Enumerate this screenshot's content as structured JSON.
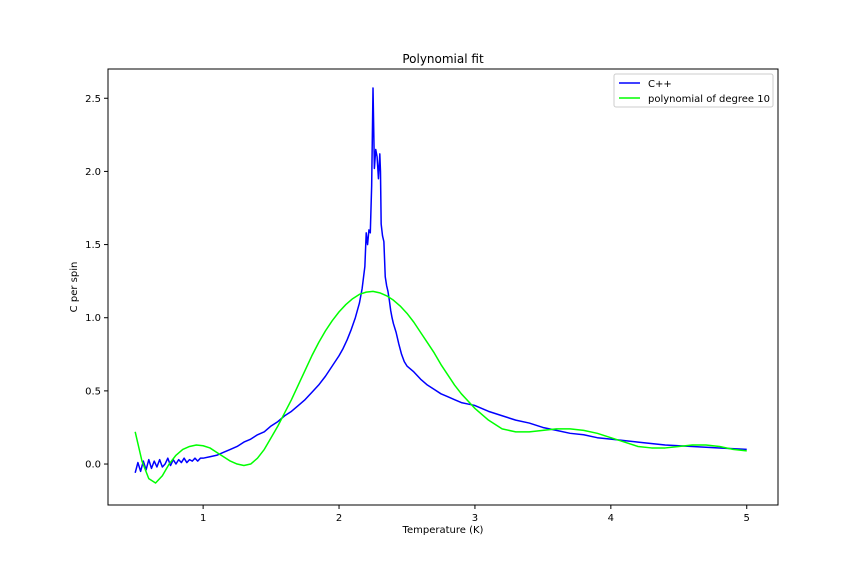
{
  "colors": {
    "cpp": "#0000ff",
    "poly": "#00ff00",
    "background": "#ffffff",
    "axes": "#000000"
  },
  "chart_data": {
    "type": "line",
    "title": "Polynomial fit",
    "xlabel": "Temperature (K)",
    "ylabel": "C per spin",
    "xlim": [
      0.3,
      5.23
    ],
    "ylim": [
      -0.28,
      2.7
    ],
    "xticks": [
      1,
      2,
      3,
      4,
      5
    ],
    "xtick_labels": [
      "1",
      "2",
      "3",
      "4",
      "5"
    ],
    "yticks": [
      0.0,
      0.5,
      1.0,
      1.5,
      2.0,
      2.5
    ],
    "ytick_labels": [
      "0.0",
      "0.5",
      "1.0",
      "1.5",
      "2.0",
      "2.5"
    ],
    "grid": false,
    "legend_position": "top-right",
    "series": [
      {
        "name": "C++",
        "color": "#0000ff",
        "x": [
          0.5,
          0.52,
          0.54,
          0.56,
          0.58,
          0.6,
          0.62,
          0.64,
          0.66,
          0.68,
          0.7,
          0.72,
          0.74,
          0.76,
          0.78,
          0.8,
          0.82,
          0.84,
          0.86,
          0.88,
          0.9,
          0.92,
          0.94,
          0.96,
          0.98,
          1.0,
          1.05,
          1.1,
          1.15,
          1.2,
          1.25,
          1.3,
          1.35,
          1.4,
          1.45,
          1.5,
          1.55,
          1.6,
          1.65,
          1.7,
          1.75,
          1.8,
          1.85,
          1.9,
          1.95,
          2.0,
          2.03,
          2.06,
          2.09,
          2.12,
          2.15,
          2.17,
          2.19,
          2.2,
          2.21,
          2.22,
          2.23,
          2.24,
          2.25,
          2.255,
          2.26,
          2.27,
          2.28,
          2.29,
          2.3,
          2.305,
          2.31,
          2.32,
          2.33,
          2.34,
          2.35,
          2.36,
          2.37,
          2.38,
          2.39,
          2.4,
          2.42,
          2.44,
          2.46,
          2.48,
          2.5,
          2.55,
          2.6,
          2.65,
          2.7,
          2.75,
          2.8,
          2.85,
          2.9,
          2.95,
          3.0,
          3.1,
          3.2,
          3.3,
          3.4,
          3.5,
          3.6,
          3.7,
          3.8,
          3.9,
          4.0,
          4.2,
          4.4,
          4.6,
          4.8,
          5.0
        ],
        "y": [
          -0.06,
          0.01,
          -0.05,
          0.02,
          -0.04,
          0.03,
          -0.03,
          0.02,
          -0.02,
          0.03,
          -0.02,
          0.0,
          0.04,
          -0.01,
          0.03,
          0.0,
          0.03,
          0.01,
          0.04,
          0.01,
          0.03,
          0.02,
          0.04,
          0.02,
          0.04,
          0.04,
          0.05,
          0.06,
          0.08,
          0.1,
          0.12,
          0.15,
          0.17,
          0.2,
          0.22,
          0.26,
          0.29,
          0.33,
          0.36,
          0.4,
          0.44,
          0.49,
          0.54,
          0.6,
          0.67,
          0.74,
          0.79,
          0.85,
          0.92,
          1.0,
          1.1,
          1.2,
          1.35,
          1.58,
          1.5,
          1.6,
          1.58,
          1.9,
          2.57,
          2.3,
          2.02,
          2.15,
          2.1,
          1.95,
          2.12,
          2.0,
          1.64,
          1.56,
          1.52,
          1.28,
          1.22,
          1.18,
          1.12,
          1.05,
          1.0,
          0.96,
          0.9,
          0.82,
          0.75,
          0.7,
          0.67,
          0.63,
          0.58,
          0.54,
          0.51,
          0.48,
          0.46,
          0.44,
          0.42,
          0.41,
          0.4,
          0.36,
          0.33,
          0.3,
          0.28,
          0.25,
          0.23,
          0.21,
          0.2,
          0.18,
          0.17,
          0.15,
          0.13,
          0.12,
          0.11,
          0.1
        ]
      },
      {
        "name": "polynomial of degree 10",
        "color": "#00ff00",
        "x": [
          0.5,
          0.55,
          0.6,
          0.65,
          0.7,
          0.75,
          0.8,
          0.85,
          0.9,
          0.95,
          1.0,
          1.05,
          1.1,
          1.15,
          1.2,
          1.25,
          1.3,
          1.35,
          1.4,
          1.45,
          1.5,
          1.55,
          1.6,
          1.65,
          1.7,
          1.75,
          1.8,
          1.85,
          1.9,
          1.95,
          2.0,
          2.05,
          2.1,
          2.15,
          2.2,
          2.25,
          2.3,
          2.35,
          2.4,
          2.45,
          2.5,
          2.55,
          2.6,
          2.65,
          2.7,
          2.75,
          2.8,
          2.85,
          2.9,
          2.95,
          3.0,
          3.1,
          3.2,
          3.3,
          3.4,
          3.5,
          3.6,
          3.7,
          3.8,
          3.9,
          4.0,
          4.1,
          4.2,
          4.3,
          4.4,
          4.5,
          4.6,
          4.7,
          4.8,
          4.9,
          5.0
        ],
        "y": [
          0.22,
          0.02,
          -0.1,
          -0.13,
          -0.08,
          0.0,
          0.06,
          0.1,
          0.12,
          0.13,
          0.125,
          0.11,
          0.08,
          0.05,
          0.02,
          0.0,
          -0.01,
          0.0,
          0.04,
          0.1,
          0.18,
          0.26,
          0.35,
          0.44,
          0.54,
          0.64,
          0.74,
          0.83,
          0.91,
          0.98,
          1.04,
          1.09,
          1.13,
          1.16,
          1.175,
          1.18,
          1.17,
          1.15,
          1.12,
          1.08,
          1.03,
          0.97,
          0.9,
          0.83,
          0.76,
          0.68,
          0.61,
          0.54,
          0.48,
          0.43,
          0.38,
          0.3,
          0.24,
          0.22,
          0.22,
          0.23,
          0.24,
          0.24,
          0.23,
          0.21,
          0.18,
          0.15,
          0.12,
          0.11,
          0.11,
          0.12,
          0.13,
          0.13,
          0.12,
          0.1,
          0.09
        ]
      }
    ]
  }
}
